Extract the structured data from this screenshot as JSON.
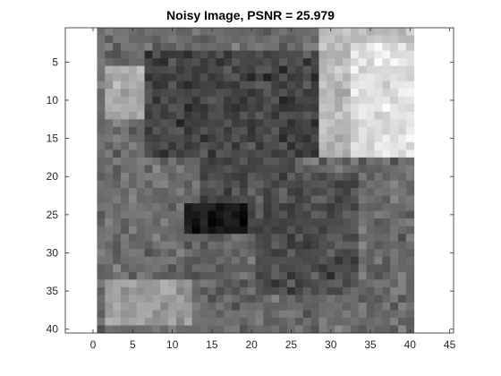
{
  "chart_data": {
    "type": "heatmap",
    "title": "Noisy Image, PSNR = 25.979",
    "xlabel": "",
    "ylabel": "",
    "xlim": [
      -3.5,
      45.5
    ],
    "ylim": [
      0.5,
      40.5
    ],
    "y_reversed": true,
    "grid": false,
    "colormap": "gray",
    "image_size": [
      40,
      40
    ],
    "x_ticks": [
      0,
      5,
      10,
      15,
      20,
      25,
      30,
      35,
      40,
      45
    ],
    "x_tick_labels": [
      "0",
      "5",
      "10",
      "15",
      "20",
      "25",
      "30",
      "35",
      "40",
      "45"
    ],
    "y_ticks": [
      5,
      10,
      15,
      20,
      25,
      30,
      35,
      40
    ],
    "y_tick_labels": [
      "5",
      "10",
      "15",
      "20",
      "25",
      "30",
      "35",
      "40"
    ],
    "noise_level": 0.045,
    "intensity_regions": [
      {
        "rows": [
          1,
          40
        ],
        "cols": [
          1,
          40
        ],
        "level": 0.42
      },
      {
        "rows": [
          6,
          12
        ],
        "cols": [
          2,
          7
        ],
        "level": 0.66
      },
      {
        "rows": [
          4,
          17
        ],
        "cols": [
          7,
          29
        ],
        "level": 0.27
      },
      {
        "rows": [
          1,
          17
        ],
        "cols": [
          29,
          40
        ],
        "level": 0.72
      },
      {
        "rows": [
          3,
          17
        ],
        "cols": [
          33,
          40
        ],
        "level": 0.88
      },
      {
        "rows": [
          16,
          25
        ],
        "cols": [
          14,
          25
        ],
        "level": 0.27
      },
      {
        "rows": [
          24,
          28
        ],
        "cols": [
          12,
          25
        ],
        "level": 0.1
      },
      {
        "rows": [
          25,
          29
        ],
        "cols": [
          20,
          24
        ],
        "level": 0.03
      },
      {
        "rows": [
          20,
          35
        ],
        "cols": [
          20,
          33
        ],
        "level": 0.3
      },
      {
        "rows": [
          28,
          36
        ],
        "cols": [
          12,
          20
        ],
        "level": 0.38
      },
      {
        "rows": [
          34,
          39
        ],
        "cols": [
          2,
          12
        ],
        "level": 0.62
      }
    ],
    "colors": {
      "axis": "#262626",
      "background": "#ffffff"
    }
  }
}
